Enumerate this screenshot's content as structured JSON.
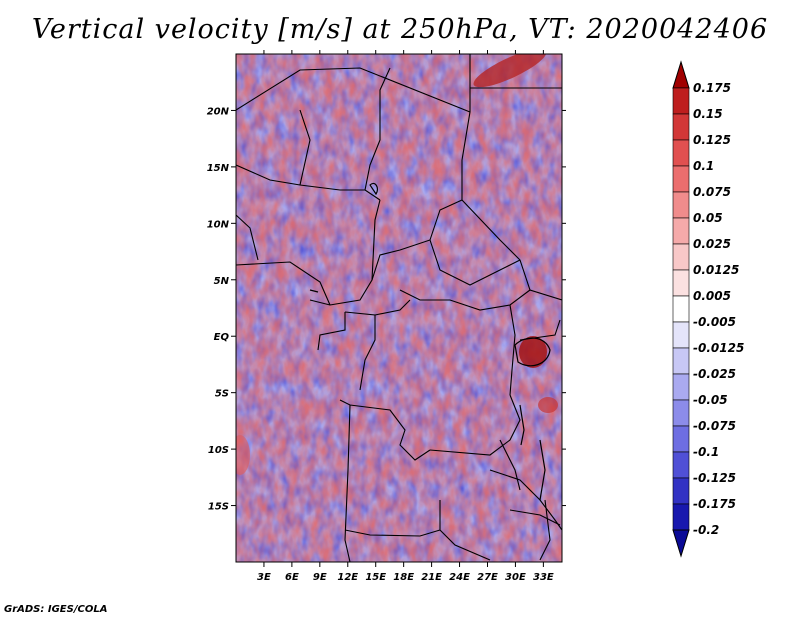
{
  "title": "Vertical velocity [m/s] at 250hPa, VT: 2020042406",
  "credit": "GrADS: IGES/COLA",
  "map": {
    "lon_range": [
      0,
      35
    ],
    "lat_range": [
      -20,
      25
    ],
    "lon_ticks": [
      "3E",
      "6E",
      "9E",
      "12E",
      "15E",
      "18E",
      "21E",
      "24E",
      "27E",
      "30E",
      "33E"
    ],
    "lon_tick_values": [
      3,
      6,
      9,
      12,
      15,
      18,
      21,
      24,
      27,
      30,
      33
    ],
    "lat_ticks": [
      "20N",
      "15N",
      "10N",
      "5N",
      "EQ",
      "5S",
      "10S",
      "15S"
    ],
    "lat_tick_values": [
      20,
      15,
      10,
      5,
      0,
      -5,
      -10,
      -15
    ]
  },
  "colorbar": {
    "labels": [
      "0.175",
      "0.15",
      "0.125",
      "0.1",
      "0.075",
      "0.05",
      "0.025",
      "0.0125",
      "0.005",
      "-0.005",
      "-0.0125",
      "-0.025",
      "-0.05",
      "-0.075",
      "-0.1",
      "-0.125",
      "-0.175",
      "-0.2"
    ],
    "colors": [
      "#a00000",
      "#be1e1e",
      "#d23737",
      "#e15050",
      "#eb6e6e",
      "#f08c8c",
      "#f5aaaa",
      "#f8c8c8",
      "#fbe1e1",
      "#ffffff",
      "#e4e4fa",
      "#c8c8f5",
      "#aaaaf0",
      "#8c8cea",
      "#6e6ee2",
      "#5050d6",
      "#3232c4",
      "#1818ae",
      "#0a0a96"
    ],
    "top_color": "#a00000",
    "bottom_color": "#0a0a96"
  }
}
